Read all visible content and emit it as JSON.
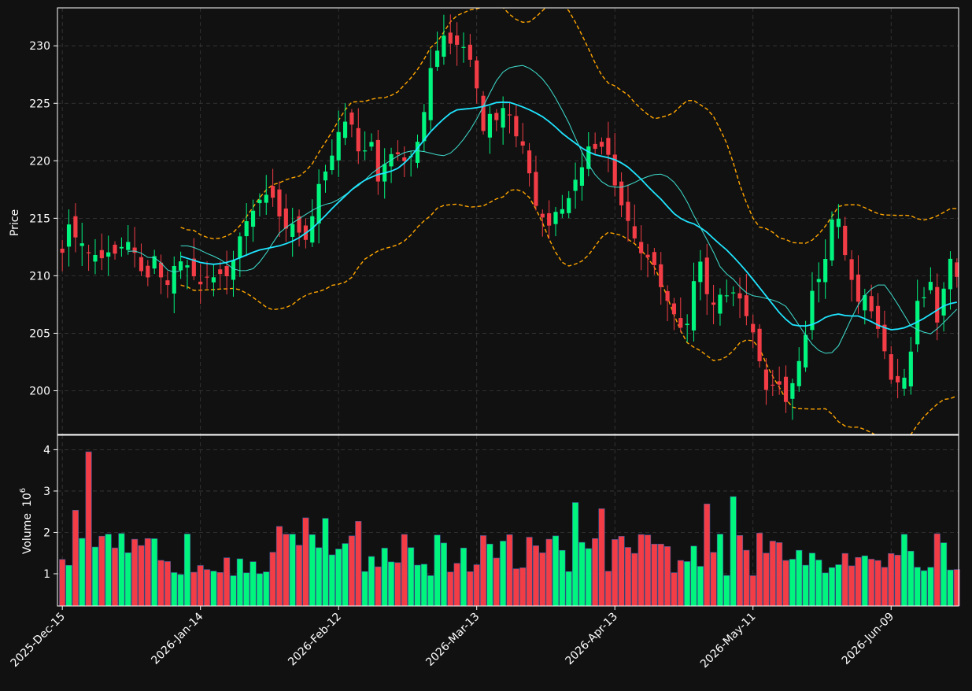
{
  "chart_data": {
    "type": "candlestick",
    "price_panel": {
      "ylabel": "Price",
      "ylim": [
        196.2,
        233.3
      ],
      "yticks": [
        200,
        205,
        210,
        215,
        220,
        225,
        230
      ],
      "grid": true
    },
    "volume_panel": {
      "ylabel": "Volume",
      "ylabel_exponent": "10",
      "ylabel_exponent_power": "6",
      "ylim": [
        0.22,
        4.35
      ],
      "yticks": [
        1,
        2,
        3,
        4
      ],
      "grid": true
    },
    "x_ticks": [
      {
        "index": 0,
        "label": "2025-Dec-15"
      },
      {
        "index": 21,
        "label": "2026-Jan-14"
      },
      {
        "index": 42,
        "label": "2026-Feb-12"
      },
      {
        "index": 63,
        "label": "2026-Mar-13"
      },
      {
        "index": 84,
        "label": "2026-Apr-13"
      },
      {
        "index": 105,
        "label": "2026-May-11"
      },
      {
        "index": 126,
        "label": "2026-Jun-09"
      }
    ],
    "colors": {
      "background": "#111111",
      "up": "#00f57f",
      "down": "#f23c46",
      "ma_short": "#3fe0d0",
      "ma_long": "#1fe5ff",
      "bollinger": "#ffa500",
      "grid": "#3a3a3a",
      "axis": "#ffffff",
      "volume_edge": "#3c5a9a"
    },
    "ohlc_close_path": [
      212.0,
      214.5,
      213.3,
      212.8,
      211.9,
      211.8,
      211.5,
      212.1,
      211.9,
      212.6,
      213.0,
      211.8,
      210.1,
      209.8,
      212.2,
      209.2,
      209.2,
      211.4,
      211.2,
      210.8,
      209.6,
      209.1,
      210.2,
      209.7,
      210.4,
      209.7,
      212.4,
      214.1,
      215.2,
      216.0,
      217.1,
      217.0,
      216.6,
      213.8,
      214.4,
      214.6,
      212.8,
      213.5,
      217.3,
      218.9,
      219.3,
      222.2,
      223.0,
      224.1,
      221.4,
      219.7,
      223.4,
      217.7,
      219.4,
      220.5,
      220.8,
      219.9,
      220.2,
      221.2,
      223.4,
      227.8,
      229.3,
      231.0,
      230.2,
      230.1,
      230.0,
      229.0,
      226.6,
      222.5,
      224.1,
      223.5,
      224.6,
      224.0,
      222.1,
      221.3,
      218.8,
      215.9,
      215.0,
      214.3,
      215.7,
      215.8,
      216.9,
      218.6,
      219.6,
      221.6,
      220.9,
      221.3,
      220.3,
      217.1,
      215.8,
      214.4,
      212.8,
      211.6,
      211.6,
      210.6,
      208.2,
      207.6,
      206.1,
      205.1,
      206.3,
      211.8,
      210.8,
      206.5,
      208.3,
      208.4,
      208.2,
      208.9,
      207.1,
      205.8,
      204.2,
      200.5,
      199.5,
      201.8,
      198.6,
      199.7,
      202.3,
      203.1,
      208.3,
      209.5,
      210.2,
      214.5,
      215.9,
      212.3,
      210.3,
      207.5,
      208.6,
      207.2,
      205.7,
      203.9,
      201.0,
      200.7,
      200.9,
      202.9,
      207.8,
      208.0,
      209.7,
      205.8,
      208.8,
      211.5,
      209.9
    ],
    "ma_short_path": [
      212.6,
      212.6,
      212.3,
      211.9,
      211.6,
      211.1,
      210.5,
      210.4,
      210.6,
      211.4,
      212.6,
      213.8,
      214.4,
      214.9,
      215.4,
      215.9,
      216.2,
      216.4,
      216.9,
      217.5,
      218.0,
      218.8,
      219.4,
      219.9,
      220.4,
      220.8,
      220.9,
      220.8,
      220.6,
      220.4,
      220.7,
      221.5,
      222.6,
      223.9,
      225.5,
      227.0,
      228.0,
      228.2,
      228.3,
      227.9,
      227.2,
      226.2,
      224.8,
      223.3,
      221.5,
      219.9,
      218.7,
      217.9,
      217.7,
      217.7,
      218.0,
      218.4,
      218.7,
      218.9,
      218.6,
      217.9,
      216.6,
      215.0,
      213.6,
      212.1,
      210.4,
      209.9,
      209.0,
      208.3,
      208.2,
      208.0,
      207.8,
      207.4,
      206.3,
      205.1,
      204.0,
      203.3,
      203.2,
      204.0,
      205.8,
      207.4,
      208.5,
      209.2,
      209.2,
      208.1,
      206.8,
      205.5,
      205.2,
      204.9,
      205.5,
      206.3,
      207.1
    ],
    "ma_long_path": [
      211.7,
      211.4,
      211.1,
      211.0,
      211.1,
      211.4,
      211.8,
      212.2,
      212.4,
      212.6,
      212.9,
      213.4,
      214.1,
      215.0,
      216.0,
      216.9,
      217.8,
      218.4,
      218.8,
      219.0,
      219.4,
      220.3,
      221.5,
      222.7,
      223.6,
      224.4,
      224.5,
      224.6,
      224.8,
      225.1,
      225.1,
      224.8,
      224.4,
      223.9,
      223.2,
      222.3,
      221.6,
      220.9,
      220.5,
      220.3,
      220.0,
      219.4,
      218.5,
      217.5,
      216.6,
      215.5,
      214.8,
      214.5,
      213.9,
      213.0,
      212.2,
      211.2,
      210.1,
      208.9,
      207.7,
      206.5,
      205.7,
      205.6,
      205.8,
      206.4,
      206.7,
      206.5,
      206.5,
      206.1,
      205.6,
      205.3,
      205.4,
      205.8,
      206.3,
      206.9,
      207.5,
      207.7
    ]
  }
}
